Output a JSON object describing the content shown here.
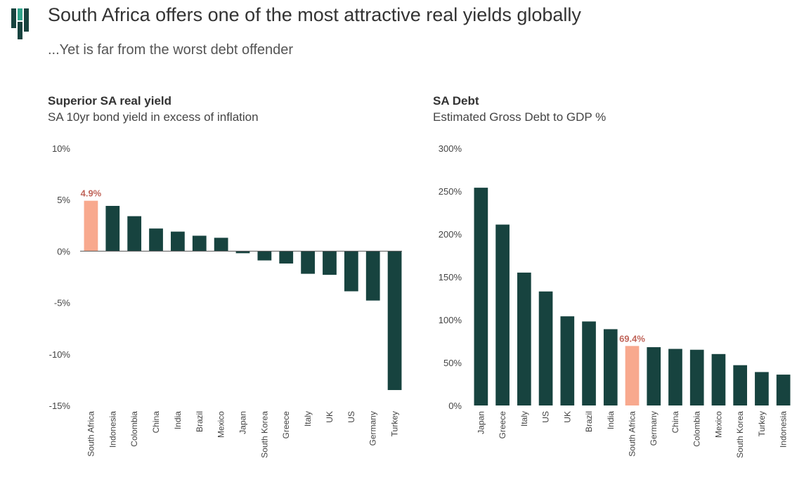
{
  "header": {
    "title": "South Africa offers one of the most attractive real yields globally",
    "subtitle": "...Yet is far from the worst debt offender"
  },
  "colors": {
    "bar": "#17433f",
    "highlight": "#f8a98e",
    "highlight_label": "#c0655a",
    "logo_dark": "#17433f",
    "logo_accent": "#2fa38a",
    "axis_text": "#444444",
    "zero_line": "#555555"
  },
  "chart_data": [
    {
      "type": "bar",
      "title": "Superior SA real yield",
      "subtitle": "SA 10yr bond yield in excess of inflation",
      "categories": [
        "South Africa",
        "Indonesia",
        "Colombia",
        "China",
        "India",
        "Brazil",
        "Mexico",
        "Japan",
        "South Korea",
        "Greece",
        "Italy",
        "UK",
        "US",
        "Germany",
        "Turkey"
      ],
      "values": [
        4.9,
        4.4,
        3.4,
        2.2,
        1.9,
        1.5,
        1.3,
        -0.2,
        -0.9,
        -1.2,
        -2.2,
        -2.3,
        -3.9,
        -4.8,
        -13.5
      ],
      "highlight": "South Africa",
      "highlight_label": "4.9%",
      "ylim": [
        -15,
        10
      ],
      "yticks": [
        "10%",
        "5%",
        "0%",
        "-5%",
        "-10%",
        "-15%"
      ],
      "grid": false
    },
    {
      "type": "bar",
      "title": "SA Debt",
      "subtitle": "Estimated Gross Debt to GDP %",
      "categories": [
        "Japan",
        "Greece",
        "Italy",
        "US",
        "UK",
        "Brazil",
        "India",
        "South Africa",
        "Germany",
        "China",
        "Colombia",
        "Mexico",
        "South Korea",
        "Turkey",
        "Indonesia"
      ],
      "values": [
        254,
        211,
        155,
        133,
        104,
        98,
        89,
        69.4,
        68,
        66,
        65,
        60,
        47,
        39,
        36
      ],
      "highlight": "South Africa",
      "highlight_label": "69.4%",
      "ylim": [
        0,
        300
      ],
      "yticks": [
        "300%",
        "250%",
        "200%",
        "150%",
        "100%",
        "50%",
        "0%"
      ],
      "grid": false
    }
  ]
}
